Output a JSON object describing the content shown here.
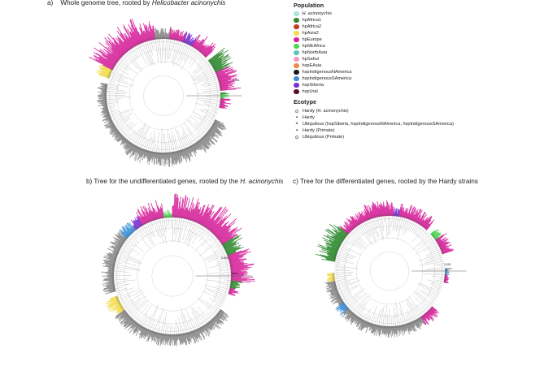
{
  "panels": [
    {
      "id": "a",
      "letter": "a)",
      "title_pre": "Whole genome tree, rooted by ",
      "title_italic": "Helicobacter acinonychis",
      "title_post": "",
      "cx": 0,
      "cy": 0,
      "arcs": [
        {
          "population": "hpAsia2",
          "start": 198,
          "end": 207,
          "len": 18
        },
        {
          "population": "hpEurope",
          "start": 207,
          "end": 248,
          "len": 34
        },
        {
          "population": "hpEurope",
          "start": 248,
          "end": 262,
          "len": 24
        },
        {
          "population": "hpSiberia",
          "start": 262,
          "end": 268,
          "len": 16
        },
        {
          "population": "hpEAsia",
          "start": 268,
          "end": 276,
          "len": 14
        },
        {
          "population": "hpEurope",
          "start": 276,
          "end": 290,
          "len": 18
        },
        {
          "population": "hspSiberia",
          "start": 290,
          "end": 300,
          "len": 14
        },
        {
          "population": "hpEurope",
          "start": 300,
          "end": 318,
          "len": 22
        },
        {
          "population": "hpAfrica1",
          "start": 322,
          "end": 336,
          "len": 30
        },
        {
          "population": "hpEurope",
          "start": 336,
          "end": 355,
          "len": 26
        },
        {
          "population": "hpNEAfrica",
          "start": 357,
          "end": 363,
          "len": 12
        },
        {
          "population": "hpEurope",
          "start": 363,
          "end": 372,
          "len": 14
        },
        {
          "population": "hpEAsia",
          "start": 385,
          "end": 485,
          "len": 18
        },
        {
          "population": "hpEAsia",
          "start": 485,
          "end": 552,
          "len": 12
        }
      ]
    },
    {
      "id": "b",
      "letter": "b)",
      "title_pre": "Tree for the undifferentiated genes, rooted by the ",
      "title_italic": "H. acinonychis",
      "title_post": "",
      "arcs": [
        {
          "population": "hpEAsia",
          "start": 165,
          "end": 220,
          "len": 16
        },
        {
          "population": "hspIndigenousSAmerica",
          "start": 220,
          "end": 232,
          "len": 16
        },
        {
          "population": "hspSiberia",
          "start": 232,
          "end": 240,
          "len": 14
        },
        {
          "population": "hpEurope",
          "start": 240,
          "end": 262,
          "len": 24
        },
        {
          "population": "hpNEAfrica",
          "start": 262,
          "end": 270,
          "len": 10
        },
        {
          "population": "hpEurope",
          "start": 270,
          "end": 300,
          "len": 30
        },
        {
          "population": "hpEurope",
          "start": 300,
          "end": 328,
          "len": 36
        },
        {
          "population": "hpAfrica1",
          "start": 328,
          "end": 340,
          "len": 26
        },
        {
          "population": "hpEurope",
          "start": 340,
          "end": 365,
          "len": 30
        },
        {
          "population": "hpAfrica1",
          "start": 365,
          "end": 372,
          "len": 16
        },
        {
          "population": "hpEurope",
          "start": 372,
          "end": 378,
          "len": 12
        },
        {
          "population": "hpEAsia",
          "start": 395,
          "end": 505,
          "len": 16
        },
        {
          "population": "hpAsia2",
          "start": 505,
          "end": 520,
          "len": 18
        }
      ]
    },
    {
      "id": "c",
      "letter": "c)",
      "title_pre": "Tree for the differentiated genes, rooted by the Hardy strains",
      "title_italic": "",
      "title_post": "",
      "arcs": [
        {
          "population": "hpAfrica1",
          "start": 190,
          "end": 222,
          "len": 26
        },
        {
          "population": "hpEurope",
          "start": 222,
          "end": 248,
          "len": 16
        },
        {
          "population": "hpEurope",
          "start": 248,
          "end": 274,
          "len": 20
        },
        {
          "population": "hspSiberia",
          "start": 274,
          "end": 280,
          "len": 10
        },
        {
          "population": "hpEurope",
          "start": 280,
          "end": 312,
          "len": 18
        },
        {
          "population": "hpNEAfrica",
          "start": 318,
          "end": 326,
          "len": 12
        },
        {
          "population": "hpEurope",
          "start": 326,
          "end": 342,
          "len": 16
        },
        {
          "population": "hspIndigenousSAmerica",
          "start": 358,
          "end": 364,
          "len": 6
        },
        {
          "population": "hpEurope",
          "start": 364,
          "end": 372,
          "len": 6
        },
        {
          "population": "hpEurope",
          "start": 400,
          "end": 416,
          "len": 14
        },
        {
          "population": "hpEAsia",
          "start": 416,
          "end": 498,
          "len": 14
        },
        {
          "population": "hspIndigenousSAmerica",
          "start": 498,
          "end": 506,
          "len": 14
        },
        {
          "population": "hpEAsia",
          "start": 506,
          "end": 530,
          "len": 14
        },
        {
          "population": "hpAsia2",
          "start": 530,
          "end": 538,
          "len": 12
        }
      ]
    }
  ],
  "legend": {
    "population_heading": "Population",
    "populations": [
      {
        "name": "H. acinonychis",
        "italic": true,
        "color": "#a8e6dc"
      },
      {
        "name": "hpAfrica1",
        "italic": false,
        "color": "#2d8a2d"
      },
      {
        "name": "hpAfrica2",
        "italic": false,
        "color": "#c0392b"
      },
      {
        "name": "hpAsia2",
        "italic": false,
        "color": "#f2dc4b"
      },
      {
        "name": "hpEurope",
        "italic": false,
        "color": "#d6229a"
      },
      {
        "name": "hpNEAfrica",
        "italic": false,
        "color": "#4fd64f"
      },
      {
        "name": "hpNorthAsia",
        "italic": false,
        "color": "#5ec7b8"
      },
      {
        "name": "hpSahul",
        "italic": false,
        "color": "#f199c0"
      },
      {
        "name": "hspEAsia",
        "italic": false,
        "color": "#f08a4b"
      },
      {
        "name": "hspIndigenousNAmerica",
        "italic": false,
        "color": "#1a1a1a"
      },
      {
        "name": "hspIndigenousSAmerica",
        "italic": false,
        "color": "#3a8fd6"
      },
      {
        "name": "hspSiberia",
        "italic": false,
        "color": "#7a2fd0"
      },
      {
        "name": "hspUral",
        "italic": false,
        "color": "#5a0f2c"
      }
    ],
    "ecotype_heading": "Ecotype",
    "ecotypes": [
      {
        "symbol": "⊙",
        "name": "Hardy (H. acinonychis)"
      },
      {
        "symbol": "▪",
        "name": "Hardy"
      },
      {
        "symbol": "×",
        "name": "Ubiquitous (hspSiberia, hspIndigenousNAmerica, hspIndigenousSAmerica)"
      },
      {
        "symbol": "▪",
        "name": "Hardy (Primate)"
      },
      {
        "symbol": "⊙",
        "name": "Ubiquitous (Primate)"
      }
    ]
  },
  "scale_label": "0.001"
}
